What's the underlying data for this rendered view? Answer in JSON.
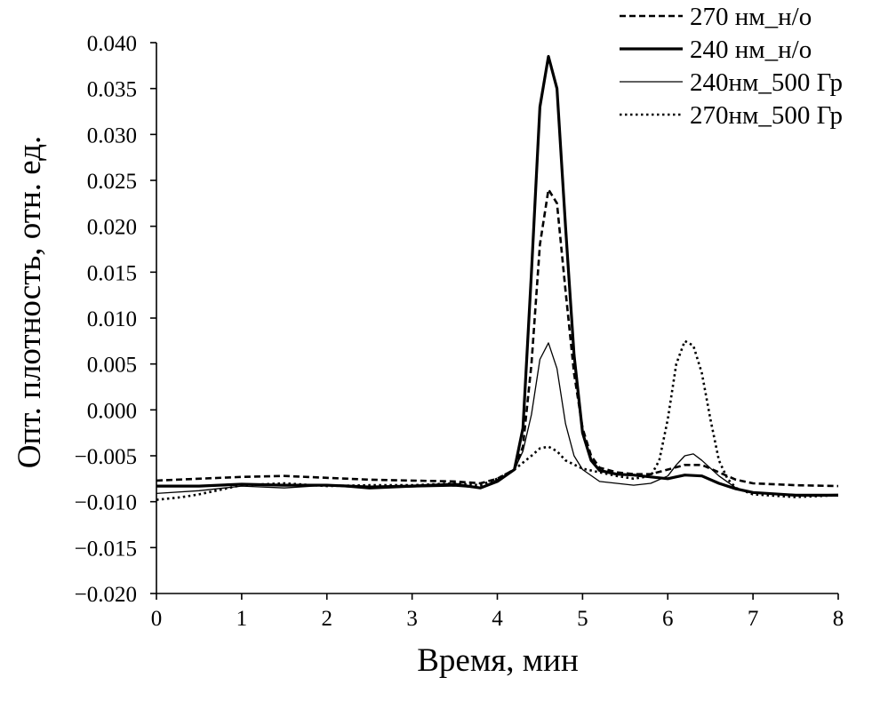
{
  "chart_data": {
    "type": "line",
    "title": "",
    "xlabel": "Время, мин",
    "ylabel": "Опт. плотность, отн. ед.",
    "xlim": [
      0,
      8
    ],
    "ylim": [
      -0.02,
      0.04
    ],
    "x_ticks": [
      0,
      1,
      2,
      3,
      4,
      5,
      6,
      7,
      8
    ],
    "x_tick_labels": [
      "0",
      "1",
      "2",
      "3",
      "4",
      "5",
      "6",
      "7",
      "8"
    ],
    "y_ticks": [
      -0.02,
      -0.015,
      -0.01,
      -0.005,
      0.0,
      0.005,
      0.01,
      0.015,
      0.02,
      0.025,
      0.03,
      0.035,
      0.04
    ],
    "y_tick_labels": [
      "−0.020",
      "−0.015",
      "−0.010",
      "−0.005",
      "0.000",
      "0.005",
      "0.010",
      "0.015",
      "0.020",
      "0.025",
      "0.030",
      "0.035",
      "0.040"
    ],
    "grid": false,
    "legend_position": "top-right",
    "series": [
      {
        "name": "270 нм_н/о",
        "style": "dashed",
        "color": "#000000",
        "x": [
          0,
          0.5,
          1.0,
          1.5,
          2.0,
          2.5,
          3.0,
          3.5,
          3.8,
          4.0,
          4.2,
          4.3,
          4.4,
          4.5,
          4.6,
          4.7,
          4.8,
          4.9,
          5.0,
          5.1,
          5.2,
          5.4,
          5.6,
          5.8,
          6.0,
          6.2,
          6.4,
          6.6,
          6.8,
          7.0,
          7.5,
          8.0
        ],
        "y": [
          -0.0077,
          -0.0075,
          -0.0073,
          -0.0072,
          -0.0074,
          -0.0076,
          -0.0077,
          -0.0078,
          -0.008,
          -0.0075,
          -0.0065,
          -0.004,
          0.005,
          0.018,
          0.024,
          0.0225,
          0.013,
          0.004,
          -0.002,
          -0.005,
          -0.0063,
          -0.0068,
          -0.007,
          -0.007,
          -0.0065,
          -0.006,
          -0.006,
          -0.0068,
          -0.0076,
          -0.008,
          -0.0082,
          -0.0083
        ]
      },
      {
        "name": "240 нм_н/о",
        "style": "solid-thick",
        "color": "#000000",
        "x": [
          0,
          0.5,
          1.0,
          1.5,
          2.0,
          2.5,
          3.0,
          3.5,
          3.8,
          4.0,
          4.2,
          4.3,
          4.4,
          4.5,
          4.6,
          4.7,
          4.8,
          4.9,
          5.0,
          5.1,
          5.2,
          5.4,
          5.6,
          5.8,
          6.0,
          6.2,
          6.4,
          6.6,
          6.8,
          7.0,
          7.5,
          8.0
        ],
        "y": [
          -0.0083,
          -0.0083,
          -0.0081,
          -0.0082,
          -0.0082,
          -0.0084,
          -0.0083,
          -0.0081,
          -0.0085,
          -0.0078,
          -0.0065,
          -0.002,
          0.015,
          0.033,
          0.0385,
          0.035,
          0.02,
          0.006,
          -0.0025,
          -0.0055,
          -0.0066,
          -0.007,
          -0.0071,
          -0.0073,
          -0.0075,
          -0.0071,
          -0.0072,
          -0.008,
          -0.0086,
          -0.009,
          -0.0093,
          -0.0093
        ]
      },
      {
        "name": "240нм_500 Гр",
        "style": "solid-thin",
        "color": "#000000",
        "x": [
          0,
          0.5,
          1.0,
          1.5,
          2.0,
          2.5,
          3.0,
          3.5,
          3.8,
          4.0,
          4.2,
          4.3,
          4.4,
          4.5,
          4.6,
          4.7,
          4.8,
          4.9,
          5.0,
          5.2,
          5.4,
          5.6,
          5.8,
          6.0,
          6.1,
          6.2,
          6.3,
          6.4,
          6.6,
          6.8,
          7.0,
          7.5,
          8.0
        ],
        "y": [
          -0.0091,
          -0.0088,
          -0.0083,
          -0.0085,
          -0.0082,
          -0.0086,
          -0.0084,
          -0.0083,
          -0.0085,
          -0.0076,
          -0.0065,
          -0.0045,
          -0.0005,
          0.0055,
          0.0073,
          0.0045,
          -0.0015,
          -0.005,
          -0.0065,
          -0.0078,
          -0.008,
          -0.0082,
          -0.008,
          -0.0072,
          -0.006,
          -0.005,
          -0.0048,
          -0.0055,
          -0.0072,
          -0.0085,
          -0.009,
          -0.0093,
          -0.0092
        ]
      },
      {
        "name": "270нм_500 Гр",
        "style": "dotted",
        "color": "#000000",
        "x": [
          0,
          0.3,
          0.5,
          1.0,
          1.5,
          2.0,
          2.5,
          3.0,
          3.5,
          3.8,
          4.0,
          4.2,
          4.4,
          4.5,
          4.6,
          4.7,
          4.8,
          5.0,
          5.2,
          5.4,
          5.6,
          5.8,
          5.9,
          6.0,
          6.1,
          6.2,
          6.3,
          6.4,
          6.5,
          6.6,
          6.7,
          6.8,
          7.0,
          7.5,
          8.0
        ],
        "y": [
          -0.0098,
          -0.0095,
          -0.0092,
          -0.0082,
          -0.008,
          -0.0083,
          -0.0082,
          -0.0082,
          -0.008,
          -0.0082,
          -0.0075,
          -0.0065,
          -0.005,
          -0.0042,
          -0.004,
          -0.0045,
          -0.0055,
          -0.0064,
          -0.0068,
          -0.0072,
          -0.0075,
          -0.0072,
          -0.0055,
          -0.001,
          0.005,
          0.0075,
          0.007,
          0.004,
          -0.001,
          -0.0055,
          -0.0075,
          -0.0085,
          -0.0092,
          -0.0095,
          -0.0093
        ]
      }
    ]
  }
}
